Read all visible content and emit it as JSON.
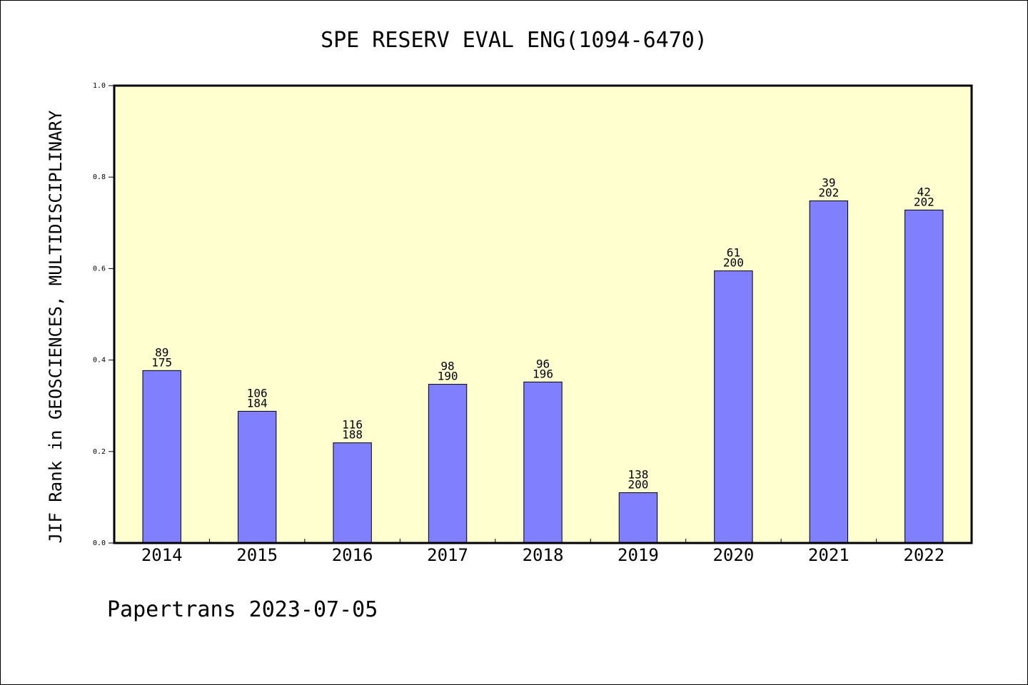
{
  "chart_data": {
    "type": "bar",
    "title": "SPE RESERV EVAL ENG(1094-6470)",
    "ylabel": "JIF Rank in GEOSCIENCES, MULTIDISCIPLINARY",
    "xlabel": "",
    "ylim": [
      0,
      1.0
    ],
    "yticks": [
      "0.0",
      "0.2",
      "0.4",
      "0.6",
      "0.8",
      "1.0"
    ],
    "ytick_values": [
      0,
      0.2,
      0.4,
      0.6,
      0.8,
      1.0
    ],
    "categories": [
      "2014",
      "2015",
      "2016",
      "2017",
      "2018",
      "2019",
      "2020",
      "2021",
      "2022"
    ],
    "values": [
      0.377,
      0.288,
      0.219,
      0.347,
      0.352,
      0.11,
      0.595,
      0.748,
      0.728
    ],
    "rank_labels": [
      "89",
      "106",
      "116",
      "98",
      "96",
      "138",
      "61",
      "39",
      "42"
    ],
    "total_labels": [
      "175",
      "184",
      "188",
      "190",
      "196",
      "200",
      "200",
      "202",
      "202"
    ],
    "grid": false,
    "legend": "none",
    "colors": {
      "bar": "#8080ff",
      "plot_background": "#ffffd0",
      "axes": "#000000"
    }
  },
  "footer": {
    "text": "Papertrans 2023-07-05"
  }
}
